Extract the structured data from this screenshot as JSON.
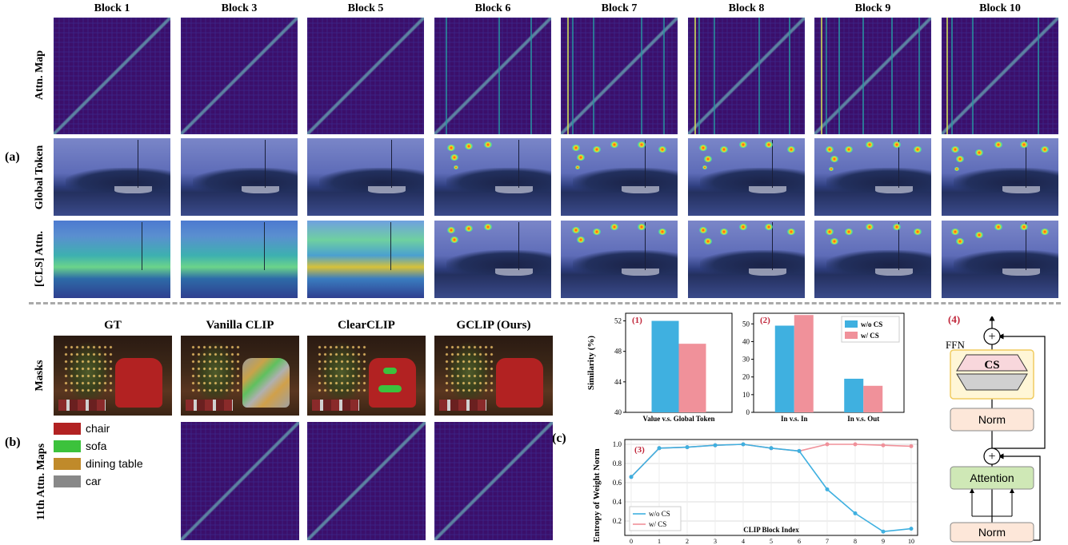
{
  "section_labels": {
    "a": "(a)",
    "b": "(b)",
    "c": "(c)"
  },
  "top": {
    "columns": [
      "Block 1",
      "Block 3",
      "Block 5",
      "Block 6",
      "Block 7",
      "Block 8",
      "Block 9",
      "Block 10"
    ],
    "rows": [
      "Attn. Map",
      "Global Token",
      "[CLS] Attn."
    ]
  },
  "bottom": {
    "columns": [
      "GT",
      "Vanilla CLIP",
      "ClearCLIP",
      "GCLIP (Ours)"
    ],
    "rows": [
      "Masks",
      "11th Attn. Maps"
    ],
    "legend": [
      {
        "label": "chair",
        "color": "#b22222"
      },
      {
        "label": "sofa",
        "color": "#3cc23c"
      },
      {
        "label": "dining table",
        "color": "#c08a2a"
      },
      {
        "label": "car",
        "color": "#888888"
      }
    ]
  },
  "colors": {
    "w_o_cs": "#3fb0e0",
    "w_cs": "#f0919a",
    "attn_bg": "#3b0f6b",
    "mask_red": "#b22222"
  },
  "chart_data": [
    {
      "type": "bar",
      "tag": "(1)",
      "ylabel": "Similarity (%)",
      "categories": [
        "Value v.s. Global Token"
      ],
      "ylim": [
        40,
        53
      ],
      "yticks": [
        40,
        44,
        48,
        52
      ],
      "series": [
        {
          "name": "w/o CS",
          "values": [
            52
          ]
        },
        {
          "name": "w/ CS",
          "values": [
            49
          ]
        }
      ]
    },
    {
      "type": "bar",
      "tag": "(2)",
      "categories": [
        "In v.s. In",
        "In v.s. Out"
      ],
      "ylim": [
        0,
        56
      ],
      "yticks": [
        0,
        10,
        20,
        30,
        40,
        50
      ],
      "legend_position": "top-right",
      "series": [
        {
          "name": "w/o CS",
          "values": [
            49,
            19
          ]
        },
        {
          "name": "w/ CS",
          "values": [
            55,
            15
          ]
        }
      ]
    },
    {
      "type": "line",
      "tag": "(3)",
      "ylabel": "Entropy of Weight Norm",
      "xlabel": "CLIP Block Index",
      "x": [
        0,
        1,
        2,
        3,
        4,
        5,
        6,
        7,
        8,
        9,
        10
      ],
      "ylim": [
        0.05,
        1.05
      ],
      "yticks": [
        0.2,
        0.4,
        0.6,
        0.8,
        1.0
      ],
      "grid": true,
      "legend_position": "bottom-left",
      "series": [
        {
          "name": "w/o CS",
          "values": [
            0.66,
            0.96,
            0.97,
            0.99,
            1.0,
            0.96,
            0.93,
            0.53,
            0.28,
            0.09,
            0.12
          ]
        },
        {
          "name": "w/ CS",
          "values": [
            0.66,
            0.96,
            0.97,
            0.99,
            1.0,
            0.96,
            0.93,
            1.0,
            1.0,
            0.99,
            0.98
          ]
        }
      ]
    }
  ],
  "diagram": {
    "tag": "(4)",
    "ffn_label": "FFN",
    "cs_label": "CS",
    "norm_label": "Norm",
    "attention_label": "Attention",
    "plus": "+"
  }
}
